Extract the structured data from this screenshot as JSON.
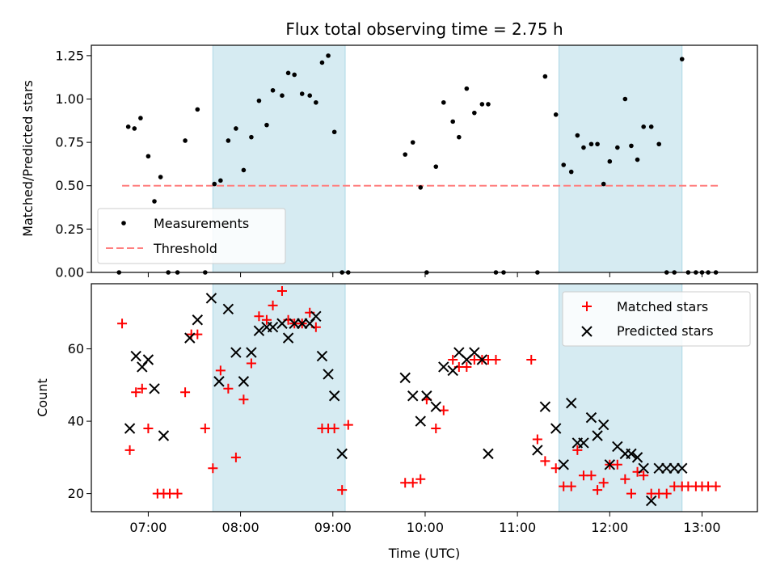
{
  "chart_data": [
    {
      "type": "scatter",
      "title": "Flux total observing time = 2.75 h",
      "xlabel": "",
      "ylabel": "Matched/Predicted stars",
      "xlim": [
        "06:23",
        "13:36"
      ],
      "ylim": [
        0,
        1.31
      ],
      "yticks": [
        0.0,
        0.25,
        0.5,
        0.75,
        1.0,
        1.25
      ],
      "ytick_labels": [
        "0.00",
        "0.25",
        "0.50",
        "0.75",
        "1.00",
        "1.25"
      ],
      "xticks": [
        "07:00",
        "08:00",
        "09:00",
        "10:00",
        "11:00",
        "12:00",
        "13:00"
      ],
      "grid": false,
      "legend": {
        "position": "lower-left",
        "entries": [
          "Measurements",
          "Threshold"
        ]
      },
      "colors": {
        "measurements": "#000000",
        "threshold": "#ff7f7f",
        "observing_band": "#add8e6"
      },
      "observing_windows": [
        [
          "07:42",
          "09:08"
        ],
        [
          "11:27",
          "12:47"
        ]
      ],
      "threshold": {
        "value": 0.5,
        "x": [
          "06:43",
          "13:12"
        ]
      },
      "series": [
        {
          "name": "Measurements",
          "x": [
            "06:41",
            "06:47",
            "06:51",
            "06:55",
            "07:00",
            "07:04",
            "07:08",
            "07:13",
            "07:19",
            "07:24",
            "07:32",
            "07:37",
            "07:43",
            "07:47",
            "07:52",
            "07:57",
            "08:02",
            "08:07",
            "08:12",
            "08:17",
            "08:21",
            "08:27",
            "08:31",
            "08:35",
            "08:40",
            "08:45",
            "08:49",
            "08:53",
            "08:57",
            "09:01",
            "09:06",
            "09:10",
            "09:47",
            "09:52",
            "09:57",
            "10:01",
            "10:07",
            "10:12",
            "10:18",
            "10:22",
            "10:27",
            "10:32",
            "10:37",
            "10:41",
            "10:46",
            "10:51",
            "11:13",
            "11:18",
            "11:25",
            "11:30",
            "11:35",
            "11:39",
            "11:43",
            "11:48",
            "11:52",
            "11:56",
            "12:00",
            "12:05",
            "12:10",
            "12:14",
            "12:18",
            "12:22",
            "12:27",
            "12:32",
            "12:37",
            "12:42",
            "12:47",
            "12:51",
            "12:56",
            "13:00",
            "13:04",
            "13:09"
          ],
          "y": [
            0.0,
            0.84,
            0.83,
            0.89,
            0.67,
            0.41,
            0.55,
            0.0,
            0.0,
            0.76,
            0.94,
            0.0,
            0.51,
            0.53,
            0.76,
            0.83,
            0.59,
            0.78,
            0.99,
            0.85,
            1.05,
            1.02,
            1.15,
            1.14,
            1.03,
            1.02,
            0.98,
            1.21,
            1.25,
            0.81,
            0.0,
            0.0,
            0.68,
            0.75,
            0.49,
            0.0,
            0.61,
            0.98,
            0.87,
            0.78,
            1.06,
            0.92,
            0.97,
            0.97,
            0.0,
            0.0,
            0.0,
            1.13,
            0.91,
            0.62,
            0.58,
            0.79,
            0.72,
            0.74,
            0.74,
            0.51,
            0.64,
            0.72,
            1.0,
            0.73,
            0.65,
            0.84,
            0.84,
            0.74,
            0.0,
            0.0,
            1.23,
            0.0,
            0.0,
            0.0,
            0.0,
            0.0
          ]
        }
      ]
    },
    {
      "type": "scatter",
      "title": "",
      "xlabel": "Time (UTC)",
      "ylabel": "Count",
      "xlim": [
        "06:23",
        "13:36"
      ],
      "ylim": [
        15,
        78
      ],
      "yticks": [
        20,
        40,
        60
      ],
      "ytick_labels": [
        "20",
        "40",
        "60"
      ],
      "xticks": [
        "07:00",
        "08:00",
        "09:00",
        "10:00",
        "11:00",
        "12:00",
        "13:00"
      ],
      "grid": false,
      "legend": {
        "position": "upper-right",
        "entries": [
          "Matched stars",
          "Predicted stars"
        ]
      },
      "colors": {
        "matched": "#ff0000",
        "predicted": "#000000",
        "observing_band": "#add8e6"
      },
      "observing_windows": [
        [
          "07:42",
          "09:08"
        ],
        [
          "11:27",
          "12:47"
        ]
      ],
      "series": [
        {
          "name": "Matched stars",
          "marker": "plus",
          "x": [
            "06:43",
            "06:48",
            "06:52",
            "06:56",
            "07:00",
            "07:06",
            "07:10",
            "07:14",
            "07:19",
            "07:24",
            "07:28",
            "07:32",
            "07:37",
            "07:42",
            "07:47",
            "07:52",
            "07:57",
            "08:02",
            "08:07",
            "08:12",
            "08:17",
            "08:21",
            "08:27",
            "08:31",
            "08:35",
            "08:40",
            "08:45",
            "08:49",
            "08:53",
            "08:57",
            "09:01",
            "09:06",
            "09:10",
            "09:47",
            "09:52",
            "09:57",
            "10:01",
            "10:07",
            "10:12",
            "10:18",
            "10:22",
            "10:27",
            "10:32",
            "10:37",
            "10:41",
            "10:46",
            "11:09",
            "11:13",
            "11:18",
            "11:25",
            "11:30",
            "11:35",
            "11:39",
            "11:43",
            "11:48",
            "11:52",
            "11:56",
            "12:00",
            "12:05",
            "12:10",
            "12:14",
            "12:18",
            "12:22",
            "12:27",
            "12:32",
            "12:37",
            "12:42",
            "12:47",
            "12:51",
            "12:56",
            "13:00",
            "13:04",
            "13:09"
          ],
          "y": [
            67,
            32,
            48,
            49,
            38,
            20,
            20,
            20,
            20,
            48,
            64,
            64,
            38,
            27,
            54,
            49,
            30,
            46,
            56,
            69,
            68,
            72,
            76,
            68,
            67,
            67,
            70,
            66,
            38,
            38,
            38,
            21,
            39,
            23,
            23,
            24,
            46,
            38,
            43,
            57,
            55,
            55,
            57,
            57,
            57,
            57,
            57,
            35,
            29,
            27,
            22,
            22,
            32,
            25,
            25,
            21,
            23,
            28,
            28,
            24,
            20,
            26,
            25,
            20,
            20,
            20,
            22,
            22,
            22,
            22,
            22,
            22,
            22
          ]
        },
        {
          "name": "Predicted stars",
          "marker": "x",
          "x": [
            "06:48",
            "06:52",
            "06:56",
            "07:00",
            "07:04",
            "07:10",
            "07:27",
            "07:32",
            "07:41",
            "07:46",
            "07:52",
            "07:57",
            "08:02",
            "08:07",
            "08:12",
            "08:17",
            "08:21",
            "08:27",
            "08:31",
            "08:35",
            "08:40",
            "08:45",
            "08:49",
            "08:53",
            "08:57",
            "09:01",
            "09:06",
            "09:47",
            "09:52",
            "09:57",
            "10:01",
            "10:07",
            "10:12",
            "10:18",
            "10:22",
            "10:27",
            "10:32",
            "10:37",
            "10:41",
            "11:13",
            "11:18",
            "11:25",
            "11:30",
            "11:35",
            "11:39",
            "11:43",
            "11:48",
            "11:52",
            "11:56",
            "12:00",
            "12:05",
            "12:10",
            "12:14",
            "12:18",
            "12:22",
            "12:27",
            "12:32",
            "12:37",
            "12:42",
            "12:47"
          ],
          "y": [
            38,
            58,
            55,
            57,
            49,
            36,
            63,
            68,
            74,
            51,
            71,
            59,
            51,
            59,
            65,
            66,
            66,
            67,
            63,
            67,
            67,
            67,
            69,
            58,
            53,
            47,
            31,
            52,
            47,
            40,
            47,
            44,
            55,
            54,
            59,
            57,
            59,
            57,
            31,
            32,
            44,
            38,
            28,
            45,
            34,
            34,
            41,
            36,
            39,
            28,
            33,
            31,
            31,
            30,
            27,
            18,
            27,
            27,
            27,
            27
          ]
        }
      ]
    }
  ]
}
